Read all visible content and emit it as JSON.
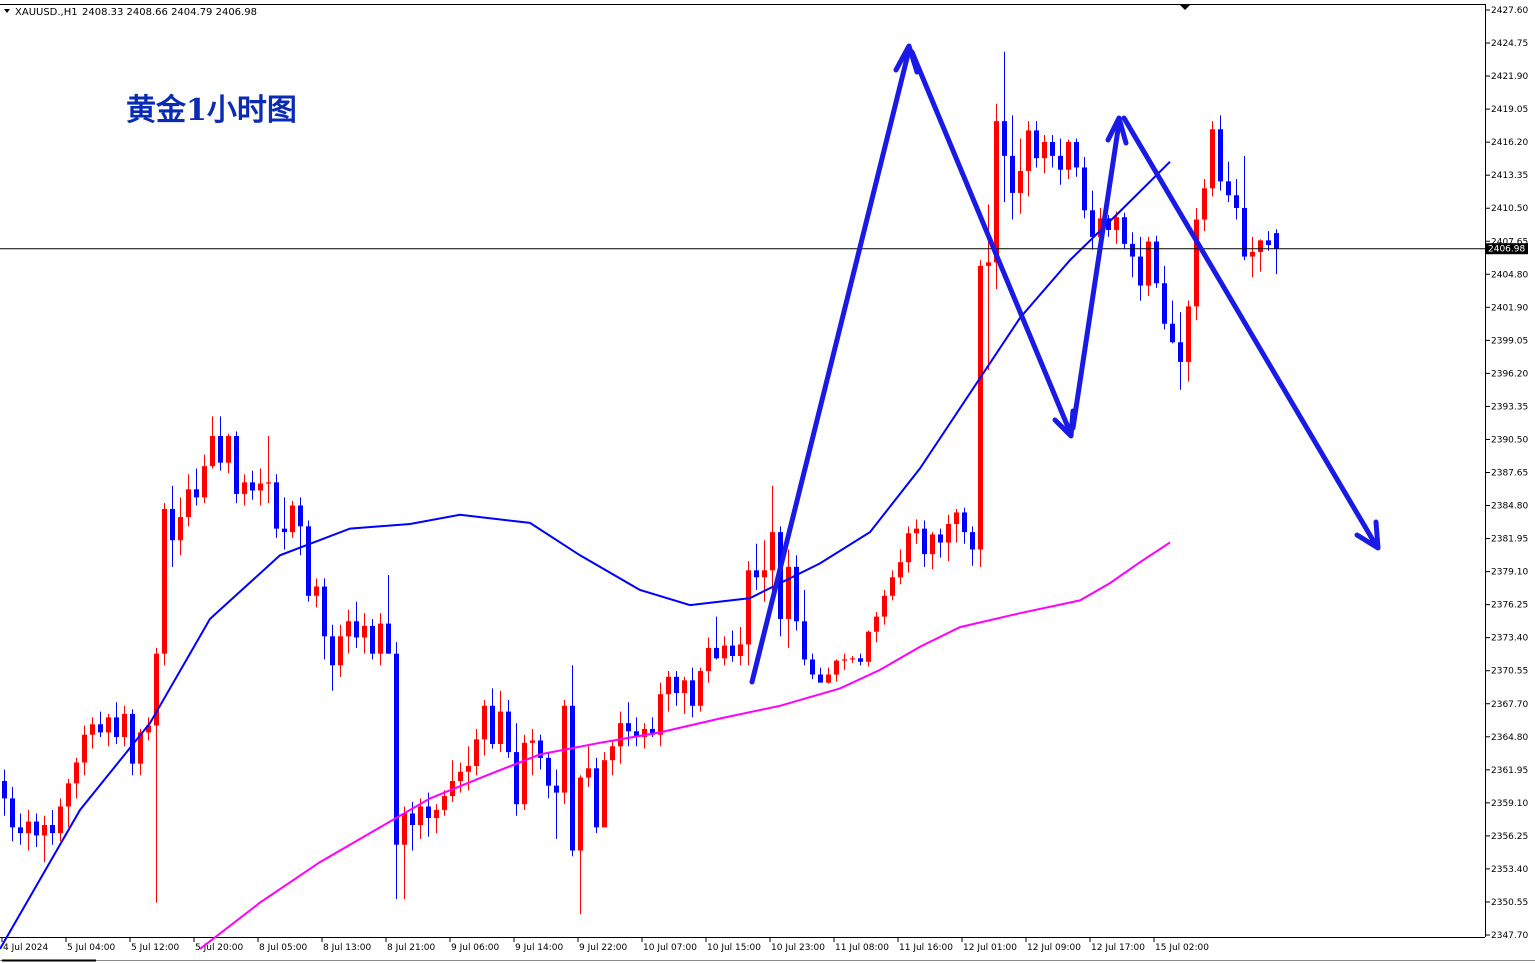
{
  "header": {
    "symbol": "XAUUSD.,H1",
    "ohlc": "2408.33 2408.66 2404.79 2406.98"
  },
  "overlay_title": "黄金1小时图",
  "current_price_label": "2406.98",
  "colors": {
    "bull": "#ff0000",
    "bear": "#0000ff",
    "ma_blue": "#0000ff",
    "ma_magenta": "#ff00ff",
    "arrow": "#1a1ae6",
    "title": "#0a2bb4"
  },
  "chart_data": {
    "type": "candlestick",
    "y_ticks": [
      "2427.60",
      "2424.75",
      "2421.90",
      "2419.05",
      "2416.20",
      "2413.35",
      "2410.50",
      "2407.65",
      "2404.80",
      "2401.90",
      "2399.05",
      "2396.20",
      "2393.35",
      "2390.50",
      "2387.65",
      "2384.80",
      "2381.95",
      "2379.10",
      "2376.25",
      "2373.40",
      "2370.55",
      "2367.70",
      "2364.80",
      "2361.95",
      "2359.10",
      "2356.25",
      "2353.40",
      "2350.55",
      "2347.70"
    ],
    "ylim": [
      2347.7,
      2427.6
    ],
    "x_ticks": [
      "4 Jul 2024",
      "5 Jul 04:00",
      "5 Jul 12:00",
      "5 Jul 20:00",
      "8 Jul 05:00",
      "8 Jul 13:00",
      "8 Jul 21:00",
      "9 Jul 06:00",
      "9 Jul 14:00",
      "9 Jul 22:00",
      "10 Jul 07:00",
      "10 Jul 15:00",
      "10 Jul 23:00",
      "11 Jul 08:00",
      "11 Jul 16:00",
      "12 Jul 01:00",
      "12 Jul 09:00",
      "12 Jul 17:00",
      "15 Jul 02:00"
    ],
    "current_price": 2406.98,
    "candles": [
      [
        2361.0,
        2362.0,
        2358.0,
        2359.5
      ],
      [
        2359.5,
        2360.5,
        2355.8,
        2357.0
      ],
      [
        2357.0,
        2358.2,
        2355.5,
        2356.5
      ],
      [
        2356.5,
        2358.5,
        2355.0,
        2357.5
      ],
      [
        2357.5,
        2358.2,
        2355.3,
        2356.3
      ],
      [
        2356.3,
        2358.0,
        2354.0,
        2357.2
      ],
      [
        2357.2,
        2358.5,
        2355.5,
        2356.5
      ],
      [
        2356.5,
        2359.5,
        2355.8,
        2358.8
      ],
      [
        2358.8,
        2361.2,
        2357.0,
        2360.8
      ],
      [
        2360.8,
        2363.0,
        2359.5,
        2362.6
      ],
      [
        2362.6,
        2365.8,
        2361.5,
        2365.0
      ],
      [
        2365.0,
        2366.5,
        2363.8,
        2365.9
      ],
      [
        2365.9,
        2367.0,
        2364.8,
        2365.2
      ],
      [
        2365.2,
        2366.8,
        2364.0,
        2366.5
      ],
      [
        2366.5,
        2367.8,
        2364.2,
        2364.8
      ],
      [
        2364.8,
        2367.5,
        2364.0,
        2366.8
      ],
      [
        2366.8,
        2367.2,
        2361.5,
        2362.5
      ],
      [
        2362.5,
        2365.5,
        2361.5,
        2365.2
      ],
      [
        2365.2,
        2366.5,
        2364.5,
        2365.8
      ],
      [
        2365.8,
        2372.5,
        2350.5,
        2372.0
      ],
      [
        2372.0,
        2385.0,
        2371.0,
        2384.5
      ],
      [
        2384.5,
        2386.5,
        2379.5,
        2381.8
      ],
      [
        2381.8,
        2385.5,
        2380.5,
        2383.8
      ],
      [
        2383.8,
        2387.5,
        2383.0,
        2386.2
      ],
      [
        2386.2,
        2388.0,
        2384.8,
        2385.5
      ],
      [
        2385.5,
        2389.2,
        2385.0,
        2388.2
      ],
      [
        2388.2,
        2392.5,
        2388.0,
        2390.8
      ],
      [
        2390.8,
        2392.5,
        2387.8,
        2388.5
      ],
      [
        2388.5,
        2391.0,
        2387.6,
        2390.8
      ],
      [
        2390.8,
        2391.2,
        2385.0,
        2385.8
      ],
      [
        2385.8,
        2387.5,
        2384.8,
        2386.8
      ],
      [
        2386.8,
        2387.8,
        2385.3,
        2386.1
      ],
      [
        2386.1,
        2388.0,
        2384.8,
        2386.7
      ],
      [
        2386.7,
        2390.8,
        2385.0,
        2386.8
      ],
      [
        2386.8,
        2387.5,
        2382.0,
        2382.8
      ],
      [
        2382.8,
        2385.5,
        2381.0,
        2382.5
      ],
      [
        2382.5,
        2385.2,
        2382.0,
        2384.8
      ],
      [
        2384.8,
        2385.5,
        2380.5,
        2383.0
      ],
      [
        2383.0,
        2383.5,
        2376.5,
        2377.0
      ],
      [
        2377.0,
        2378.5,
        2376.0,
        2377.8
      ],
      [
        2377.8,
        2378.5,
        2371.5,
        2373.5
      ],
      [
        2373.5,
        2374.5,
        2368.8,
        2371.0
      ],
      [
        2371.0,
        2374.5,
        2370.0,
        2373.5
      ],
      [
        2373.5,
        2375.8,
        2372.0,
        2374.8
      ],
      [
        2374.8,
        2376.5,
        2372.5,
        2373.4
      ],
      [
        2373.4,
        2375.5,
        2372.0,
        2374.4
      ],
      [
        2374.4,
        2375.0,
        2371.5,
        2372.0
      ],
      [
        2372.0,
        2375.5,
        2371.0,
        2374.6
      ],
      [
        2374.6,
        2378.8,
        2372.0,
        2372.0
      ],
      [
        2372.0,
        2373.0,
        2350.8,
        2355.5
      ],
      [
        2355.5,
        2358.8,
        2350.8,
        2358.2
      ],
      [
        2358.2,
        2359.2,
        2355.0,
        2357.2
      ],
      [
        2357.2,
        2359.5,
        2356.0,
        2358.8
      ],
      [
        2358.8,
        2360.0,
        2356.2,
        2357.8
      ],
      [
        2357.8,
        2359.0,
        2356.5,
        2358.5
      ],
      [
        2358.5,
        2360.2,
        2358.0,
        2359.7
      ],
      [
        2359.7,
        2362.8,
        2359.2,
        2361.0
      ],
      [
        2361.0,
        2362.6,
        2360.0,
        2361.8
      ],
      [
        2361.8,
        2364.0,
        2360.2,
        2362.3
      ],
      [
        2362.3,
        2365.5,
        2361.5,
        2364.6
      ],
      [
        2364.6,
        2368.0,
        2363.2,
        2367.5
      ],
      [
        2367.5,
        2369.0,
        2363.8,
        2364.2
      ],
      [
        2364.2,
        2368.8,
        2363.5,
        2367.0
      ],
      [
        2367.0,
        2368.0,
        2363.0,
        2363.5
      ],
      [
        2363.5,
        2366.0,
        2358.0,
        2359.0
      ],
      [
        2359.0,
        2365.0,
        2358.5,
        2364.3
      ],
      [
        2364.3,
        2365.5,
        2361.5,
        2364.5
      ],
      [
        2364.5,
        2365.0,
        2362.0,
        2363.0
      ],
      [
        2363.0,
        2363.5,
        2359.5,
        2360.6
      ],
      [
        2360.6,
        2362.0,
        2356.0,
        2360.0
      ],
      [
        2360.0,
        2368.0,
        2359.0,
        2367.5
      ],
      [
        2367.5,
        2371.0,
        2354.5,
        2355.0
      ],
      [
        2355.0,
        2361.5,
        2349.5,
        2361.3
      ],
      [
        2361.3,
        2364.0,
        2360.5,
        2362.1
      ],
      [
        2362.1,
        2363.0,
        2356.5,
        2357.0
      ],
      [
        2357.0,
        2363.5,
        2357.0,
        2362.8
      ],
      [
        2362.8,
        2364.5,
        2361.5,
        2364.0
      ],
      [
        2364.0,
        2367.0,
        2362.5,
        2366.0
      ],
      [
        2366.0,
        2367.8,
        2364.0,
        2365.3
      ],
      [
        2365.3,
        2366.5,
        2364.0,
        2364.8
      ],
      [
        2364.8,
        2366.0,
        2363.8,
        2365.5
      ],
      [
        2365.5,
        2366.5,
        2364.8,
        2365.0
      ],
      [
        2365.0,
        2369.5,
        2364.0,
        2368.5
      ],
      [
        2368.5,
        2370.5,
        2367.0,
        2370.0
      ],
      [
        2370.0,
        2370.5,
        2367.5,
        2368.6
      ],
      [
        2368.6,
        2370.0,
        2366.8,
        2369.7
      ],
      [
        2369.7,
        2370.8,
        2366.5,
        2367.5
      ],
      [
        2367.5,
        2370.8,
        2367.0,
        2370.5
      ],
      [
        2370.5,
        2373.4,
        2369.5,
        2372.5
      ],
      [
        2372.5,
        2375.2,
        2371.5,
        2371.6
      ],
      [
        2371.6,
        2373.5,
        2371.0,
        2372.7
      ],
      [
        2372.7,
        2374.0,
        2371.3,
        2371.8
      ],
      [
        2371.8,
        2374.3,
        2371.0,
        2372.8
      ],
      [
        2372.8,
        2380.0,
        2371.0,
        2379.2
      ],
      [
        2379.2,
        2381.5,
        2377.5,
        2378.6
      ],
      [
        2378.6,
        2381.8,
        2376.5,
        2379.2
      ],
      [
        2379.2,
        2386.5,
        2377.0,
        2382.5
      ],
      [
        2382.5,
        2383.0,
        2373.5,
        2375.0
      ],
      [
        2375.0,
        2381.0,
        2372.5,
        2379.5
      ],
      [
        2379.5,
        2380.5,
        2374.0,
        2374.8
      ],
      [
        2374.8,
        2377.5,
        2371.0,
        2371.5
      ],
      [
        2371.5,
        2372.0,
        2369.8,
        2370.2
      ],
      [
        2370.2,
        2370.8,
        2369.5,
        2369.5
      ],
      [
        2369.5,
        2370.8,
        2369.4,
        2370.2
      ],
      [
        2370.2,
        2371.5,
        2369.6,
        2371.4
      ],
      [
        2371.4,
        2372.0,
        2370.6,
        2371.5
      ],
      [
        2371.5,
        2371.8,
        2371.2,
        2371.6
      ],
      [
        2371.6,
        2372.0,
        2371.0,
        2371.3
      ],
      [
        2371.3,
        2374.0,
        2370.9,
        2373.9
      ],
      [
        2373.9,
        2375.6,
        2373.0,
        2375.2
      ],
      [
        2375.2,
        2377.5,
        2374.5,
        2377.0
      ],
      [
        2377.0,
        2379.2,
        2376.6,
        2378.6
      ],
      [
        2378.6,
        2381.0,
        2378.0,
        2379.9
      ],
      [
        2379.9,
        2383.0,
        2379.0,
        2382.4
      ],
      [
        2382.4,
        2383.6,
        2381.5,
        2382.8
      ],
      [
        2382.8,
        2383.5,
        2379.5,
        2380.6
      ],
      [
        2380.6,
        2382.5,
        2379.3,
        2382.3
      ],
      [
        2382.3,
        2382.8,
        2380.3,
        2381.6
      ],
      [
        2381.6,
        2384.0,
        2380.0,
        2383.2
      ],
      [
        2383.2,
        2384.5,
        2381.6,
        2384.2
      ],
      [
        2384.2,
        2384.6,
        2381.5,
        2382.5
      ],
      [
        2382.5,
        2383.0,
        2379.6,
        2381.0
      ],
      [
        2381.0,
        2406.0,
        2379.5,
        2405.5
      ],
      [
        2405.5,
        2410.8,
        2396.5,
        2405.8
      ],
      [
        2405.8,
        2419.5,
        2403.5,
        2418.0
      ],
      [
        2418.0,
        2424.0,
        2411.0,
        2415.0
      ],
      [
        2415.0,
        2418.5,
        2409.5,
        2411.8
      ],
      [
        2411.8,
        2416.5,
        2410.0,
        2413.7
      ],
      [
        2413.7,
        2418.0,
        2411.5,
        2417.2
      ],
      [
        2417.2,
        2418.0,
        2414.0,
        2414.8
      ],
      [
        2414.8,
        2416.8,
        2413.5,
        2416.2
      ],
      [
        2416.2,
        2416.8,
        2414.0,
        2415.0
      ],
      [
        2415.0,
        2416.5,
        2412.5,
        2413.8
      ],
      [
        2413.8,
        2416.4,
        2413.0,
        2416.2
      ],
      [
        2416.2,
        2416.5,
        2413.2,
        2414.0
      ],
      [
        2414.0,
        2414.9,
        2409.6,
        2410.3
      ],
      [
        2410.3,
        2412.0,
        2406.9,
        2408.0
      ],
      [
        2408.0,
        2410.5,
        2407.0,
        2409.6
      ],
      [
        2409.6,
        2409.9,
        2408.0,
        2408.6
      ],
      [
        2408.6,
        2410.2,
        2407.4,
        2409.7
      ],
      [
        2409.7,
        2410.1,
        2407.0,
        2407.4
      ],
      [
        2407.4,
        2408.4,
        2404.5,
        2406.3
      ],
      [
        2406.3,
        2408.0,
        2402.5,
        2403.8
      ],
      [
        2403.8,
        2408.0,
        2402.9,
        2407.6
      ],
      [
        2407.6,
        2408.1,
        2403.6,
        2404.0
      ],
      [
        2404.0,
        2405.5,
        2400.0,
        2400.5
      ],
      [
        2400.5,
        2402.5,
        2398.8,
        2398.9
      ],
      [
        2398.9,
        2401.5,
        2394.8,
        2397.2
      ],
      [
        2397.2,
        2402.5,
        2395.5,
        2402.0
      ],
      [
        2402.0,
        2410.5,
        2400.8,
        2409.5
      ],
      [
        2409.5,
        2413.0,
        2408.5,
        2412.2
      ],
      [
        2412.2,
        2418.0,
        2411.5,
        2417.3
      ],
      [
        2417.3,
        2418.5,
        2412.0,
        2412.8
      ],
      [
        2412.8,
        2414.5,
        2411.0,
        2411.6
      ],
      [
        2411.6,
        2413.0,
        2409.5,
        2410.5
      ],
      [
        2410.5,
        2415.0,
        2406.0,
        2406.3
      ],
      [
        2406.3,
        2408.0,
        2404.5,
        2406.7
      ],
      [
        2406.7,
        2407.8,
        2405.0,
        2407.7
      ],
      [
        2407.7,
        2408.5,
        2406.8,
        2407.3
      ],
      [
        2408.33,
        2408.66,
        2404.79,
        2406.98
      ]
    ],
    "series": [
      {
        "name": "",
        "values": [
          [
            0,
            2346.5
          ],
          [
            80,
            2358.5
          ],
          [
            150,
            2366.0
          ],
          [
            210,
            2375.0
          ],
          [
            280,
            2380.5
          ],
          [
            350,
            2382.8
          ],
          [
            410,
            2383.2
          ],
          [
            460,
            2384.0
          ],
          [
            530,
            2383.3
          ],
          [
            580,
            2380.5
          ],
          [
            640,
            2377.5
          ],
          [
            690,
            2376.2
          ],
          [
            750,
            2376.8
          ],
          [
            820,
            2379.8
          ],
          [
            870,
            2382.5
          ],
          [
            920,
            2388.0
          ],
          [
            970,
            2394.5
          ],
          [
            1020,
            2401.0
          ],
          [
            1070,
            2406.0
          ],
          [
            1120,
            2410.2
          ],
          [
            1170,
            2414.5
          ]
        ]
      },
      {
        "name": "",
        "values": [
          [
            200,
            2346.5
          ],
          [
            260,
            2350.5
          ],
          [
            320,
            2354.0
          ],
          [
            370,
            2356.5
          ],
          [
            430,
            2359.5
          ],
          [
            490,
            2361.6
          ],
          [
            540,
            2363.3
          ],
          [
            600,
            2364.3
          ],
          [
            660,
            2365.2
          ],
          [
            720,
            2366.4
          ],
          [
            780,
            2367.5
          ],
          [
            840,
            2369.0
          ],
          [
            880,
            2370.6
          ],
          [
            920,
            2372.6
          ],
          [
            960,
            2374.3
          ],
          [
            1020,
            2375.5
          ],
          [
            1080,
            2376.6
          ],
          [
            1110,
            2378.1
          ],
          [
            1140,
            2379.9
          ],
          [
            1170,
            2381.6
          ]
        ]
      }
    ]
  }
}
